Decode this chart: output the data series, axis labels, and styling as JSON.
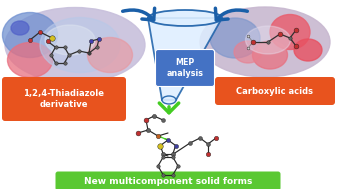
{
  "bg_color": "#ffffff",
  "fig_width": 3.37,
  "fig_height": 1.89,
  "left_label": "1,2,4-Thiadiazole\nderivative",
  "right_label": "Carboxylic acids",
  "bottom_label": "New multicomponent solid forms",
  "center_label": "MEP\nanalysis",
  "left_label_color": "#ffffff",
  "right_label_color": "#ffffff",
  "bottom_label_color": "#ffffff",
  "center_label_color": "#ffffff",
  "left_box_color": "#e8531e",
  "right_box_color": "#e8531e",
  "bottom_box_color": "#5ac832",
  "center_box_color": "#4472c4",
  "arrow_color": "#1a5fa8",
  "funnel_fill": "#ddeeff",
  "funnel_edge": "#1a5fa8",
  "mol_arrow_color": "#44cc22",
  "left_blob_base": "#c8b8d8",
  "right_blob_base": "#c8b8d8"
}
